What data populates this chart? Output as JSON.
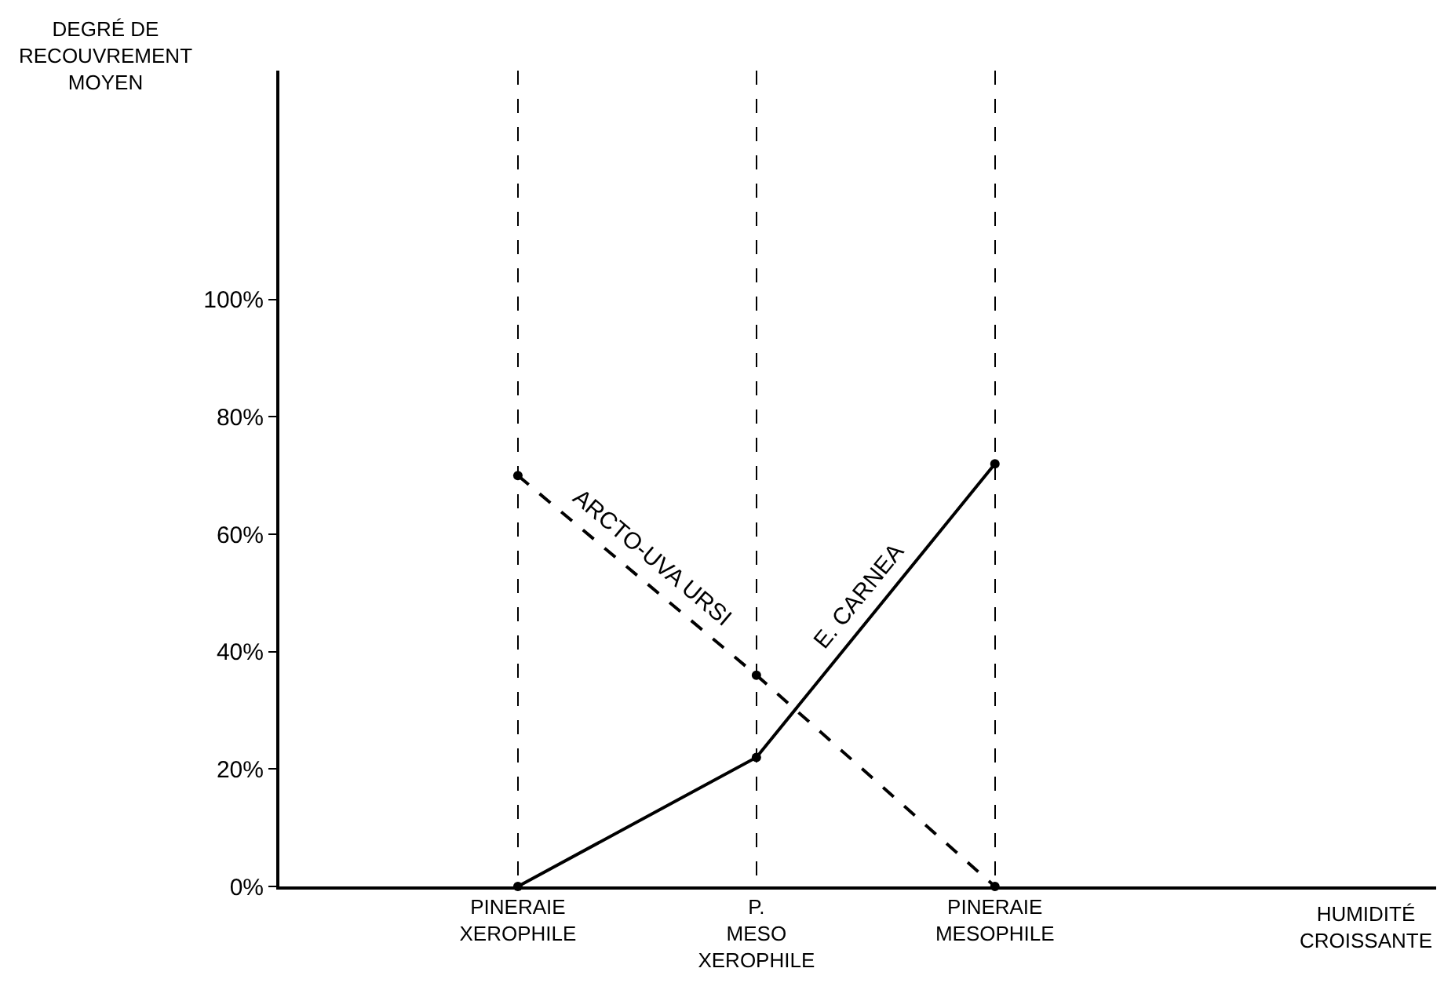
{
  "chart_data": {
    "type": "line",
    "ylabel": "DEGRÉ DE\nRECOUVREMENT\nMOYEN",
    "annotations": [
      "HUMIDITÉ\nCROISSANTE"
    ],
    "categories": [
      "PINERAIE\nXEROPHILE",
      "P.\nMESO\nXEROPHILE",
      "PINERAIE\nMESOPHILE"
    ],
    "series": [
      {
        "name": "ARCTO-UVA URSI",
        "color": "#000000",
        "line_style": "dashed",
        "values": [
          70,
          36,
          0
        ]
      },
      {
        "name": "E. CARNEA",
        "color": "#000000",
        "line_style": "solid",
        "values": [
          0,
          22,
          72
        ]
      }
    ],
    "ylim": [
      0,
      139
    ],
    "yticks": [
      {
        "value": 0,
        "label": "0%"
      },
      {
        "value": 20,
        "label": "20%"
      },
      {
        "value": 40,
        "label": "40%"
      },
      {
        "value": 60,
        "label": "60%"
      },
      {
        "value": 80,
        "label": "80%"
      },
      {
        "value": 100,
        "label": "100%"
      }
    ],
    "grid": "x",
    "marker": "circle",
    "legend": false
  }
}
